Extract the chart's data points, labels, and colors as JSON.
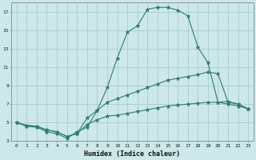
{
  "xlabel": "Humidex (Indice chaleur)",
  "ylabel": "",
  "bg_color": "#cce8e8",
  "grid_color": "#aacccc",
  "line_color": "#2e7d6e",
  "xlim": [
    -0.5,
    23.5
  ],
  "ylim": [
    3,
    18
  ],
  "yticks": [
    3,
    5,
    7,
    9,
    11,
    13,
    15,
    17
  ],
  "xticks": [
    0,
    1,
    2,
    3,
    4,
    5,
    6,
    7,
    8,
    9,
    10,
    11,
    12,
    13,
    14,
    15,
    16,
    17,
    18,
    19,
    20,
    21,
    22,
    23
  ],
  "line1_x": [
    0,
    1,
    2,
    3,
    4,
    5,
    6,
    7,
    8,
    9,
    10,
    11,
    12,
    13,
    14,
    15,
    16,
    17,
    18,
    19,
    20,
    21,
    22,
    23
  ],
  "line1_y": [
    5.0,
    4.6,
    4.5,
    4.0,
    3.8,
    3.3,
    4.0,
    4.5,
    6.3,
    8.8,
    12.0,
    14.8,
    15.5,
    17.3,
    17.5,
    17.5,
    17.2,
    16.6,
    13.2,
    11.5,
    7.2,
    7.3,
    7.0,
    6.5
  ],
  "line2_x": [
    0,
    1,
    2,
    3,
    4,
    5,
    6,
    7,
    8,
    9,
    10,
    11,
    12,
    13,
    14,
    15,
    16,
    17,
    18,
    19,
    20,
    21,
    22,
    23
  ],
  "line2_y": [
    5.0,
    4.7,
    4.6,
    4.2,
    4.0,
    3.5,
    3.8,
    5.5,
    6.3,
    7.2,
    7.6,
    8.0,
    8.4,
    8.8,
    9.2,
    9.6,
    9.8,
    10.0,
    10.2,
    10.5,
    10.3,
    7.2,
    7.0,
    6.5
  ],
  "line3_x": [
    0,
    1,
    2,
    3,
    4,
    5,
    6,
    7,
    8,
    9,
    10,
    11,
    12,
    13,
    14,
    15,
    16,
    17,
    18,
    19,
    20,
    21,
    22,
    23
  ],
  "line3_y": [
    5.0,
    4.7,
    4.6,
    4.2,
    4.0,
    3.5,
    3.8,
    4.8,
    5.3,
    5.7,
    5.8,
    6.0,
    6.2,
    6.4,
    6.6,
    6.8,
    6.9,
    7.0,
    7.1,
    7.2,
    7.2,
    7.0,
    6.8,
    6.5
  ]
}
